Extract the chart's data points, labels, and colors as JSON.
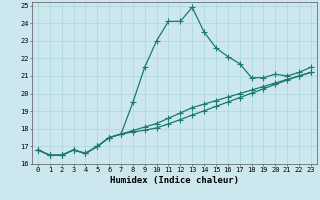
{
  "xlabel": "Humidex (Indice chaleur)",
  "bg_color": "#cce8ee",
  "grid_color": "#b0d8e0",
  "line_color": "#1a7a6e",
  "xlim": [
    -0.5,
    23.5
  ],
  "ylim": [
    16,
    25.2
  ],
  "xticks": [
    0,
    1,
    2,
    3,
    4,
    5,
    6,
    7,
    8,
    9,
    10,
    11,
    12,
    13,
    14,
    15,
    16,
    17,
    18,
    19,
    20,
    21,
    22,
    23
  ],
  "yticks": [
    16,
    17,
    18,
    19,
    20,
    21,
    22,
    23,
    24,
    25
  ],
  "curve1_x": [
    0,
    1,
    2,
    3,
    4,
    5,
    6,
    7,
    8,
    9,
    10,
    11,
    12,
    13,
    14,
    15,
    16,
    17,
    18,
    19,
    20,
    21,
    22,
    23
  ],
  "curve1_y": [
    16.8,
    16.5,
    16.5,
    16.8,
    16.6,
    17.0,
    17.5,
    17.7,
    19.5,
    21.5,
    23.0,
    24.1,
    24.1,
    24.9,
    23.5,
    22.6,
    22.1,
    21.7,
    20.9,
    20.9,
    21.1,
    21.0,
    21.2,
    21.5
  ],
  "curve2_x": [
    0,
    1,
    2,
    3,
    4,
    5,
    6,
    7,
    8,
    9,
    10,
    11,
    12,
    13,
    14,
    15,
    16,
    17,
    18,
    19,
    20,
    21,
    22,
    23
  ],
  "curve2_y": [
    16.8,
    16.5,
    16.5,
    16.8,
    16.6,
    17.0,
    17.5,
    17.7,
    17.9,
    18.1,
    18.3,
    18.6,
    18.9,
    19.2,
    19.4,
    19.6,
    19.8,
    20.0,
    20.2,
    20.4,
    20.6,
    20.8,
    21.0,
    21.2
  ],
  "curve3_x": [
    0,
    1,
    2,
    3,
    4,
    5,
    6,
    7,
    8,
    9,
    10,
    11,
    12,
    13,
    14,
    15,
    16,
    17,
    18,
    19,
    20,
    21,
    22,
    23
  ],
  "curve3_y": [
    16.8,
    16.5,
    16.5,
    16.8,
    16.6,
    17.0,
    17.5,
    17.7,
    17.82,
    17.92,
    18.05,
    18.28,
    18.52,
    18.78,
    19.02,
    19.27,
    19.52,
    19.77,
    20.02,
    20.27,
    20.52,
    20.77,
    21.0,
    21.2
  ],
  "marker": "+",
  "markersize": 4,
  "linewidth": 0.9,
  "label_fontsize": 6.5,
  "tick_fontsize": 5.0
}
